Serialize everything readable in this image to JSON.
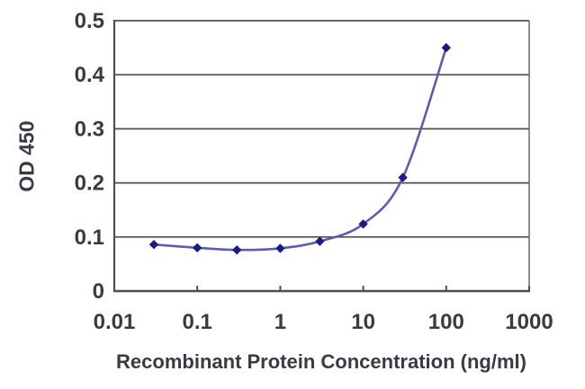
{
  "chart_data": {
    "type": "line",
    "title": "",
    "xlabel": "Recombinant Protein Concentration (ng/ml)",
    "ylabel": "OD 450",
    "x_scale": "log",
    "xlim": [
      0.01,
      1000
    ],
    "ylim": [
      0,
      0.5
    ],
    "x_ticks": [
      0.01,
      0.1,
      1,
      10,
      100,
      1000
    ],
    "x_tick_labels": [
      "0.01",
      "0.1",
      "1",
      "10",
      "100",
      "1000"
    ],
    "y_ticks": [
      0,
      0.1,
      0.2,
      0.3,
      0.4,
      0.5
    ],
    "y_tick_labels": [
      "0",
      "0.1",
      "0.2",
      "0.3",
      "0.4",
      "0.5"
    ],
    "grid": "horizontal",
    "legend": "none",
    "series": [
      {
        "marker": "diamond",
        "x": [
          0.03,
          0.1,
          0.3,
          1,
          3,
          10,
          30,
          100
        ],
        "y": [
          0.086,
          0.08,
          0.076,
          0.079,
          0.092,
          0.124,
          0.21,
          0.45
        ]
      }
    ],
    "colors": {
      "line": "#5d5daf",
      "marker": "#1b1b85",
      "grid": "#4f4f4f",
      "axis": "#4f4f4f",
      "plot_border": "#6a6a6a",
      "text": "#3a3a46"
    }
  }
}
